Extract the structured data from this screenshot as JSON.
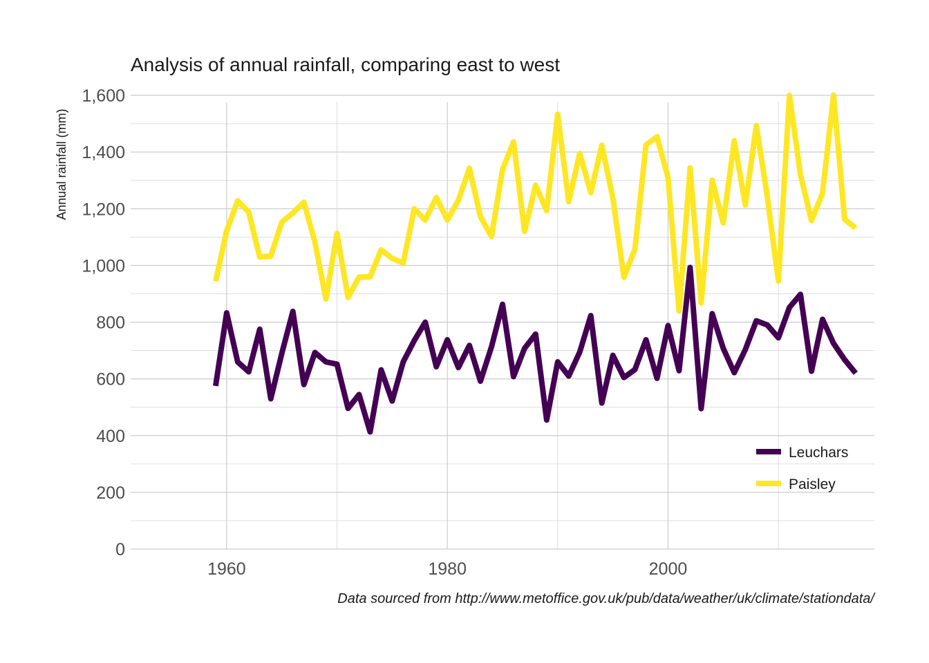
{
  "chart_data": {
    "type": "line",
    "title": "Analysis of annual rainfall, comparing east to west",
    "xlabel": "",
    "ylabel": "Annual rainfall (mm)",
    "caption": "Data sourced from http://www.metoffice.gov.uk/pub/data/weather/uk/climate/stationdata/",
    "xlim": [
      1951.3,
      2018.7
    ],
    "ylim": [
      0,
      1600
    ],
    "x_ticks": [
      1960,
      1980,
      2000
    ],
    "x_tick_labels": [
      "1960",
      "1980",
      "2000"
    ],
    "y_ticks": [
      0,
      200,
      400,
      600,
      800,
      1000,
      1200,
      1400,
      1600
    ],
    "y_tick_labels": [
      "0",
      "200",
      "400",
      "600",
      "800",
      "1,000",
      "1,200",
      "1,400",
      "1,600"
    ],
    "grid": true,
    "legend_position": "bottom-right",
    "x": [
      1959,
      1960,
      1961,
      1962,
      1963,
      1964,
      1965,
      1966,
      1967,
      1968,
      1969,
      1970,
      1971,
      1972,
      1973,
      1974,
      1975,
      1976,
      1977,
      1978,
      1979,
      1980,
      1981,
      1982,
      1983,
      1984,
      1985,
      1986,
      1987,
      1988,
      1989,
      1990,
      1991,
      1992,
      1993,
      1994,
      1995,
      1996,
      1997,
      1998,
      1999,
      2000,
      2001,
      2002,
      2003,
      2004,
      2005,
      2006,
      2007,
      2008,
      2009,
      2010,
      2011,
      2012,
      2013,
      2014,
      2015,
      2016,
      2017
    ],
    "series": [
      {
        "name": "Leuchars",
        "color": "#440154",
        "values": [
          575,
          833,
          660,
          625,
          775,
          530,
          690,
          838,
          580,
          693,
          660,
          652,
          496,
          545,
          413,
          632,
          522,
          660,
          735,
          800,
          643,
          738,
          640,
          718,
          592,
          713,
          863,
          608,
          708,
          758,
          455,
          660,
          610,
          695,
          823,
          515,
          683,
          605,
          633,
          738,
          602,
          788,
          629,
          993,
          495,
          830,
          708,
          622,
          703,
          805,
          790,
          745,
          852,
          898,
          627,
          810,
          725,
          668,
          620
        ]
      },
      {
        "name": "Paisley",
        "color": "#fde725",
        "values": [
          944,
          1122,
          1228,
          1188,
          1030,
          1033,
          1153,
          1185,
          1223,
          1082,
          882,
          1113,
          887,
          959,
          960,
          1055,
          1025,
          1009,
          1200,
          1160,
          1240,
          1160,
          1230,
          1343,
          1172,
          1102,
          1338,
          1436,
          1120,
          1283,
          1193,
          1533,
          1225,
          1395,
          1257,
          1424,
          1238,
          958,
          1058,
          1425,
          1454,
          1310,
          840,
          1344,
          868,
          1301,
          1150,
          1440,
          1213,
          1494,
          1241,
          945,
          1600,
          1320,
          1158,
          1255,
          1601,
          1163,
          1132
        ]
      }
    ]
  }
}
